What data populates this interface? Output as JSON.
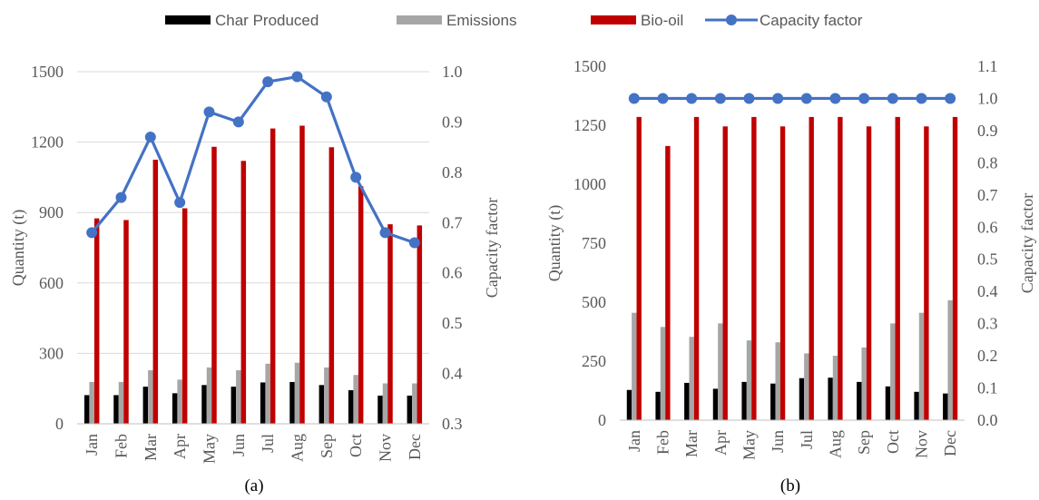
{
  "legend": {
    "items": [
      {
        "label": "Char Produced",
        "color": "#000000",
        "kind": "bar"
      },
      {
        "label": "Emissions",
        "color": "#a6a6a6",
        "kind": "bar"
      },
      {
        "label": "Bio-oil",
        "color": "#c00000",
        "kind": "bar"
      },
      {
        "label": "Capacity factor",
        "color": "#4472c4",
        "kind": "line"
      }
    ]
  },
  "chart_data": [
    {
      "type": "bar",
      "panel_label": "(a)",
      "ylabel": "Quantity (t)",
      "y2label": "Capacity factor",
      "ylim": [
        0,
        1500
      ],
      "y_ticks": [
        "0",
        "300",
        "600",
        "900",
        "1200",
        "1500"
      ],
      "y2lim": [
        0.3,
        1.0
      ],
      "y2_ticks": [
        "0.3",
        "0.4",
        "0.5",
        "0.6",
        "0.7",
        "0.8",
        "0.9",
        "1.0"
      ],
      "grid": true,
      "categories": [
        "Jan",
        "Feb",
        "Mar",
        "Apr",
        "May",
        "Jun",
        "Jul",
        "Aug",
        "Sep",
        "Oct",
        "Nov",
        "Dec"
      ],
      "series": [
        {
          "name": "Char Produced",
          "type": "bar",
          "axis": "left",
          "color": "#000000",
          "values": [
            122,
            122,
            158,
            130,
            165,
            158,
            176,
            178,
            165,
            143,
            120,
            120
          ]
        },
        {
          "name": "Emissions",
          "type": "bar",
          "axis": "left",
          "color": "#a6a6a6",
          "values": [
            178,
            178,
            228,
            188,
            240,
            228,
            256,
            260,
            240,
            208,
            172,
            172
          ]
        },
        {
          "name": "Bio-oil",
          "type": "bar",
          "axis": "left",
          "color": "#c00000",
          "values": [
            875,
            868,
            1125,
            918,
            1180,
            1120,
            1258,
            1270,
            1178,
            1012,
            850,
            845
          ]
        },
        {
          "name": "Capacity factor",
          "type": "line",
          "axis": "right",
          "color": "#4472c4",
          "values": [
            0.68,
            0.75,
            0.87,
            0.74,
            0.92,
            0.9,
            0.98,
            0.99,
            0.95,
            0.79,
            0.68,
            0.66
          ]
        }
      ]
    },
    {
      "type": "bar",
      "panel_label": "(b)",
      "ylabel": "Quantity (t)",
      "y2label": "Capacity factor",
      "ylim": [
        0,
        1500
      ],
      "y_ticks": [
        "0",
        "250",
        "500",
        "750",
        "1000",
        "1250",
        "1500"
      ],
      "y2lim": [
        0.0,
        1.1
      ],
      "y2_ticks": [
        "0.0",
        "0.1",
        "0.2",
        "0.3",
        "0.4",
        "0.5",
        "0.6",
        "0.7",
        "0.8",
        "0.9",
        "1.0",
        "1.1"
      ],
      "grid": false,
      "categories": [
        "Jan",
        "Feb",
        "Mar",
        "Apr",
        "May",
        "Jun",
        "Jul",
        "Aug",
        "Sep",
        "Oct",
        "Nov",
        "Dec"
      ],
      "series": [
        {
          "name": "Char Produced",
          "type": "bar",
          "axis": "left",
          "color": "#000000",
          "values": [
            128,
            120,
            158,
            133,
            162,
            155,
            178,
            180,
            162,
            143,
            120,
            113
          ]
        },
        {
          "name": "Emissions",
          "type": "bar",
          "axis": "left",
          "color": "#a6a6a6",
          "values": [
            455,
            395,
            353,
            410,
            338,
            330,
            283,
            273,
            308,
            410,
            455,
            508
          ]
        },
        {
          "name": "Bio-oil",
          "type": "bar",
          "axis": "left",
          "color": "#c00000",
          "values": [
            1285,
            1162,
            1285,
            1245,
            1285,
            1245,
            1285,
            1285,
            1245,
            1285,
            1245,
            1285
          ]
        },
        {
          "name": "Capacity factor",
          "type": "line",
          "axis": "right",
          "color": "#4472c4",
          "values": [
            1.0,
            1.0,
            1.0,
            1.0,
            1.0,
            1.0,
            1.0,
            1.0,
            1.0,
            1.0,
            1.0,
            1.0
          ]
        }
      ]
    }
  ]
}
